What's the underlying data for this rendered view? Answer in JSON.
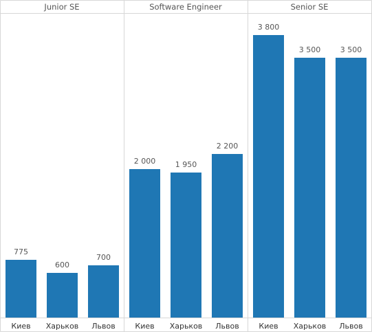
{
  "chart_data": {
    "type": "bar",
    "facet_by": "position",
    "panels": [
      {
        "title": "Junior SE",
        "categories": [
          "Киев",
          "Харьков",
          "Львов"
        ],
        "values": [
          775,
          600,
          700
        ],
        "value_labels": [
          "775",
          "600",
          "700"
        ]
      },
      {
        "title": "Software Engineer",
        "categories": [
          "Киев",
          "Харьков",
          "Львов"
        ],
        "values": [
          2000,
          1950,
          2200
        ],
        "value_labels": [
          "2 000",
          "1 950",
          "2 200"
        ]
      },
      {
        "title": "Senior SE",
        "categories": [
          "Киев",
          "Харьков",
          "Львов"
        ],
        "values": [
          3800,
          3500,
          3500
        ],
        "value_labels": [
          "3 800",
          "3 500",
          "3 500"
        ]
      }
    ],
    "ylim": [
      0,
      4100
    ],
    "grid": false,
    "legend": "none",
    "bar_color": "#1f77b4"
  }
}
